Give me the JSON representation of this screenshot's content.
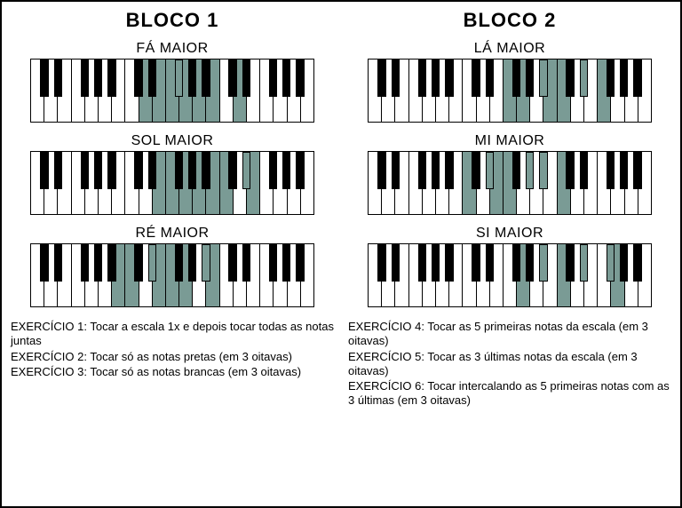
{
  "highlight_color": "#7a9b95",
  "keyboard": {
    "white_count": 21,
    "black_pattern_start": 5,
    "black_width_ratio": 0.62
  },
  "blocks": [
    {
      "title": "BLOCO 1",
      "scales": [
        {
          "title": "FÁ MAIOR",
          "highlight_white": [
            8,
            9,
            10,
            11,
            12,
            13,
            15
          ],
          "highlight_black": [
            10
          ]
        },
        {
          "title": "SOL MAIOR",
          "highlight_white": [
            9,
            10,
            11,
            12,
            13,
            14,
            16
          ],
          "highlight_black": [
            15
          ]
        },
        {
          "title": "RÉ MAIOR",
          "highlight_white": [
            6,
            7,
            9,
            10,
            11,
            13
          ],
          "highlight_black": [
            8,
            12
          ]
        }
      ],
      "exercises": [
        {
          "label": "EXERCÍCIO 1:",
          "text": "Tocar a escala 1x e depois tocar todas as notas juntas"
        },
        {
          "label": "EXERCÍCIO 2:",
          "text": "Tocar só as notas pretas (em 3 oitavas)"
        },
        {
          "label": "EXERCÍCIO 3:",
          "text": "Tocar só as notas brancas (em 3 oitavas)"
        }
      ]
    },
    {
      "title": "BLOCO 2",
      "scales": [
        {
          "title": "LÁ MAIOR",
          "highlight_white": [
            10,
            11,
            13,
            14,
            17
          ],
          "highlight_black": [
            12,
            15,
            16
          ]
        },
        {
          "title": "MI MAIOR",
          "highlight_white": [
            7,
            9,
            10,
            14
          ],
          "highlight_black": [
            8,
            11,
            12,
            13
          ]
        },
        {
          "title": "SI MAIOR",
          "highlight_white": [
            11,
            14,
            18
          ],
          "highlight_black": [
            12,
            13,
            15,
            16,
            17
          ]
        }
      ],
      "exercises": [
        {
          "label": "EXERCÍCIO 4:",
          "text": "Tocar as 5 primeiras notas da escala (em 3 oitavas)"
        },
        {
          "label": "EXERCÍCIO 5:",
          "text": "Tocar as 3 últimas notas da escala (em 3 oitavas)"
        },
        {
          "label": "EXERCÍCIO 6:",
          "text": "Tocar intercalando as 5 primeiras notas com as 3 últimas (em 3 oitavas)"
        }
      ]
    }
  ]
}
